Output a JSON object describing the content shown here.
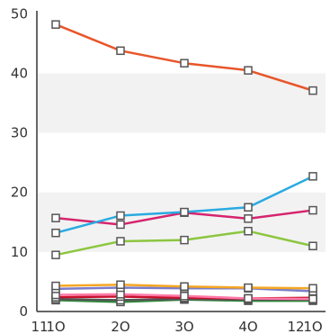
{
  "chart_data": {
    "type": "line",
    "title": "",
    "xlabel": "",
    "ylabel": "",
    "x": [
      10,
      20,
      30,
      40,
      50
    ],
    "x_tick_labels": [
      "1O",
      "2O",
      "3O",
      "4O",
      "1O"
    ],
    "extra_tick_labels": [
      {
        "text": "11",
        "at": "left-of-first-x"
      },
      {
        "text": "12",
        "at": "left-of-last-x"
      }
    ],
    "y_ticks": [
      0,
      10,
      20,
      30,
      40,
      50
    ],
    "ylim": [
      0,
      50.5
    ],
    "grid": "alternating horizontal bands",
    "legend": "none",
    "marker": "square",
    "series": [
      {
        "color": "#e8562a",
        "values": [
          48.2,
          43.8,
          41.7,
          40.5,
          37.1
        ]
      },
      {
        "color": "#2aaae2",
        "values": [
          13.2,
          16.1,
          16.7,
          17.5,
          22.7
        ]
      },
      {
        "color": "#d6246e",
        "values": [
          15.7,
          14.6,
          16.6,
          15.6,
          17.0
        ]
      },
      {
        "color": "#8cc63f",
        "values": [
          9.5,
          11.8,
          12.0,
          13.5,
          11.0
        ]
      },
      {
        "color": "#f5a623",
        "values": [
          4.3,
          4.5,
          4.2,
          4.0,
          3.9
        ]
      },
      {
        "color": "#7a7dc9",
        "values": [
          3.8,
          4.0,
          3.9,
          3.9,
          3.4
        ]
      },
      {
        "color": "#ff7aa8",
        "values": [
          2.8,
          2.9,
          2.6,
          2.2,
          2.1
        ]
      },
      {
        "color": "#c8102e",
        "values": [
          2.4,
          2.5,
          2.3,
          2.2,
          2.3
        ]
      },
      {
        "color": "#555555",
        "values": [
          2.1,
          1.9,
          2.1,
          2.0,
          2.0
        ]
      },
      {
        "color": "#2e8b3a",
        "values": [
          1.9,
          1.6,
          2.0,
          1.8,
          1.8
        ]
      }
    ]
  }
}
